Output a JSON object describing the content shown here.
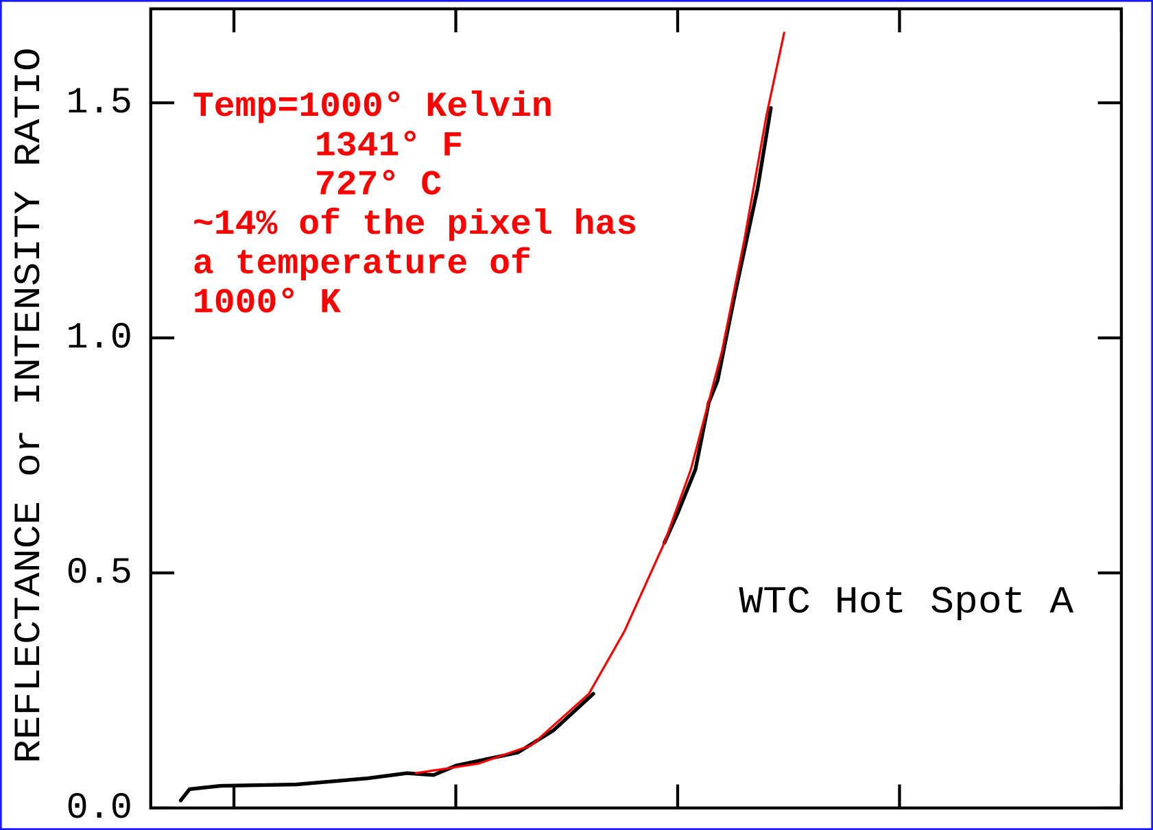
{
  "chart_data": {
    "type": "line",
    "ylabel": "REFLECTANCE or INTENSITY RATIO",
    "annotations": [
      "Temp=1000° Kelvin",
      "1341° F",
      "727° C",
      "~14% of the pixel has",
      "a temperature of",
      "1000° K"
    ],
    "label": "WTC Hot Spot A",
    "xlim": [
      0.3125,
      2.5
    ],
    "xticks": [
      0.5,
      1.0,
      1.5,
      2.0,
      2.5
    ],
    "ylim": [
      0,
      1.7
    ],
    "yticks": [
      {
        "value": 0,
        "label": "0.0"
      },
      0.5,
      {
        "value": 1.0,
        "label": "1.0"
      },
      1.5
    ],
    "series": [
      {
        "color": "#000000",
        "x": [
          0.38,
          0.4,
          0.47,
          0.64,
          0.8,
          0.89,
          0.95,
          1.0,
          1.14,
          1.22,
          1.31,
          null,
          1.47,
          1.5,
          1.54,
          1.57,
          1.59,
          1.61,
          1.63,
          1.68,
          1.71
        ],
        "values": [
          0.016,
          0.04,
          0.047,
          0.05,
          0.063,
          0.074,
          0.07,
          0.09,
          0.118,
          0.165,
          0.243,
          null,
          0.564,
          0.627,
          0.72,
          0.862,
          0.909,
          1.003,
          1.097,
          1.317,
          1.489
        ]
      },
      {
        "color": "#ff0000",
        "x": [
          0.91,
          1.05,
          1.17,
          1.3,
          1.38,
          1.47,
          1.53,
          1.6,
          1.65,
          1.7,
          1.74
        ],
        "values": [
          0.074,
          0.094,
          0.133,
          0.243,
          0.376,
          0.564,
          0.721,
          0.972,
          1.207,
          1.473,
          1.649
        ]
      }
    ]
  }
}
